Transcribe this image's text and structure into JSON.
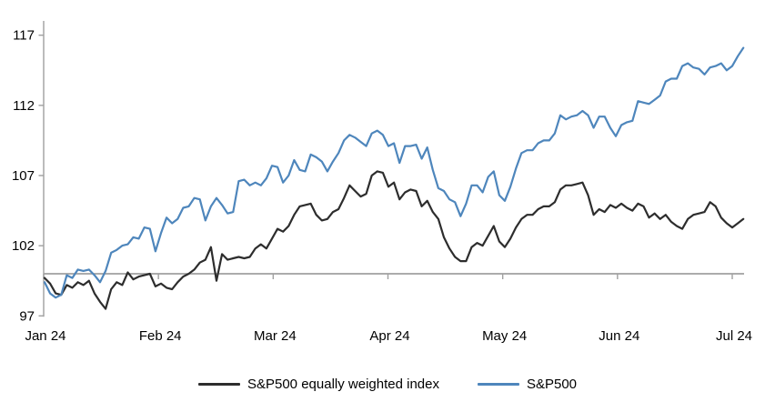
{
  "chart_data": {
    "type": "line",
    "title": "",
    "xlabel": "",
    "ylabel": "",
    "grid": false,
    "legend_position": "bottom-center",
    "x_axis": {
      "tick_labels": [
        "Jan 24",
        "Feb 24",
        "Mar 24",
        "Apr 24",
        "May 24",
        "Jun 24",
        "Jul 24"
      ],
      "month_start_indices": [
        0,
        21,
        41,
        61,
        83,
        105,
        124
      ]
    },
    "y_axis": {
      "tick_labels": [
        "97",
        "102",
        "107",
        "112",
        "117"
      ],
      "tick_values": [
        97,
        102,
        107,
        112,
        117
      ],
      "ylim": [
        97,
        118
      ],
      "baseline_value": 100
    },
    "dates": [
      "Jan 2",
      "Jan 3",
      "Jan 4",
      "Jan 5",
      "Jan 8",
      "Jan 9",
      "Jan 10",
      "Jan 11",
      "Jan 12",
      "Jan 16",
      "Jan 17",
      "Jan 18",
      "Jan 19",
      "Jan 22",
      "Jan 23",
      "Jan 24",
      "Jan 25",
      "Jan 26",
      "Jan 29",
      "Jan 30",
      "Jan 31",
      "Feb 1",
      "Feb 2",
      "Feb 5",
      "Feb 6",
      "Feb 7",
      "Feb 8",
      "Feb 9",
      "Feb 12",
      "Feb 13",
      "Feb 14",
      "Feb 15",
      "Feb 16",
      "Feb 20",
      "Feb 21",
      "Feb 22",
      "Feb 23",
      "Feb 26",
      "Feb 27",
      "Feb 28",
      "Feb 29",
      "Mar 1",
      "Mar 4",
      "Mar 5",
      "Mar 6",
      "Mar 7",
      "Mar 8",
      "Mar 11",
      "Mar 12",
      "Mar 13",
      "Mar 14",
      "Mar 15",
      "Mar 18",
      "Mar 19",
      "Mar 20",
      "Mar 21",
      "Mar 22",
      "Mar 25",
      "Mar 26",
      "Mar 27",
      "Mar 28",
      "Apr 1",
      "Apr 2",
      "Apr 3",
      "Apr 4",
      "Apr 5",
      "Apr 8",
      "Apr 9",
      "Apr 10",
      "Apr 11",
      "Apr 12",
      "Apr 15",
      "Apr 16",
      "Apr 17",
      "Apr 18",
      "Apr 19",
      "Apr 22",
      "Apr 23",
      "Apr 24",
      "Apr 25",
      "Apr 26",
      "Apr 29",
      "Apr 30",
      "May 1",
      "May 2",
      "May 3",
      "May 6",
      "May 7",
      "May 8",
      "May 9",
      "May 10",
      "May 13",
      "May 14",
      "May 15",
      "May 16",
      "May 17",
      "May 20",
      "May 21",
      "May 22",
      "May 23",
      "May 24",
      "May 28",
      "May 29",
      "May 30",
      "May 31",
      "Jun 3",
      "Jun 4",
      "Jun 5",
      "Jun 6",
      "Jun 7",
      "Jun 10",
      "Jun 11",
      "Jun 12",
      "Jun 13",
      "Jun 14",
      "Jun 17",
      "Jun 18",
      "Jun 20",
      "Jun 21",
      "Jun 24",
      "Jun 25",
      "Jun 26",
      "Jun 27",
      "Jun 28",
      "Jul 1",
      "Jul 2",
      "Jul 3"
    ],
    "series": [
      {
        "name": "S&P500 equally weighted index",
        "color": "#2d2d2d",
        "values": [
          99.7,
          99.3,
          98.6,
          98.5,
          99.2,
          99.0,
          99.4,
          99.2,
          99.5,
          98.6,
          98.0,
          97.5,
          98.9,
          99.4,
          99.2,
          100.1,
          99.6,
          99.8,
          99.9,
          100.0,
          99.1,
          99.3,
          99.0,
          98.9,
          99.4,
          99.8,
          100.0,
          100.3,
          100.8,
          101.0,
          101.9,
          99.5,
          101.4,
          101.0,
          101.1,
          101.2,
          101.1,
          101.2,
          101.8,
          102.1,
          101.8,
          102.5,
          103.2,
          103.0,
          103.4,
          104.2,
          104.8,
          104.9,
          105.0,
          104.2,
          103.8,
          103.9,
          104.4,
          104.6,
          105.4,
          106.3,
          105.9,
          105.5,
          105.7,
          107.0,
          107.3,
          107.2,
          106.2,
          106.5,
          105.3,
          105.8,
          106.0,
          105.9,
          104.8,
          105.2,
          104.4,
          103.9,
          102.6,
          101.8,
          101.2,
          100.9,
          100.9,
          101.9,
          102.2,
          102.0,
          102.7,
          103.4,
          102.3,
          101.9,
          102.5,
          103.3,
          103.9,
          104.2,
          104.2,
          104.6,
          104.8,
          104.8,
          105.1,
          106.0,
          106.3,
          106.3,
          106.4,
          106.5,
          105.6,
          104.2,
          104.6,
          104.4,
          104.9,
          104.7,
          105.0,
          104.7,
          104.5,
          105.0,
          104.8,
          104.0,
          104.3,
          103.9,
          104.2,
          103.7,
          103.4,
          103.2,
          103.9,
          104.2,
          104.3,
          104.4,
          105.1,
          104.8,
          104.0,
          103.6,
          103.3,
          103.6,
          103.9
        ]
      },
      {
        "name": "S&P500",
        "color": "#4e86bc",
        "values": [
          99.4,
          98.6,
          98.3,
          98.5,
          99.9,
          99.7,
          100.3,
          100.2,
          100.3,
          99.9,
          99.4,
          100.2,
          101.5,
          101.7,
          102.0,
          102.1,
          102.6,
          102.5,
          103.3,
          103.2,
          101.6,
          102.9,
          104.0,
          103.6,
          103.9,
          104.7,
          104.8,
          105.4,
          105.3,
          103.8,
          104.8,
          105.4,
          104.9,
          104.3,
          104.4,
          106.6,
          106.7,
          106.3,
          106.5,
          106.3,
          106.8,
          107.7,
          107.6,
          106.5,
          107.0,
          108.1,
          107.4,
          107.3,
          108.5,
          108.3,
          108.0,
          107.3,
          108.0,
          108.6,
          109.5,
          109.9,
          109.7,
          109.4,
          109.1,
          110.0,
          110.2,
          109.9,
          109.1,
          109.3,
          107.9,
          109.1,
          109.1,
          109.2,
          108.2,
          109.0,
          107.4,
          106.1,
          105.9,
          105.3,
          105.1,
          104.1,
          105.0,
          106.3,
          106.3,
          105.8,
          106.9,
          107.3,
          105.6,
          105.2,
          106.2,
          107.5,
          108.6,
          108.8,
          108.8,
          109.3,
          109.5,
          109.5,
          110.0,
          111.3,
          111.0,
          111.2,
          111.3,
          111.6,
          111.3,
          110.4,
          111.2,
          111.2,
          110.4,
          109.8,
          110.6,
          110.8,
          110.9,
          112.3,
          112.2,
          112.1,
          112.4,
          112.7,
          113.7,
          113.9,
          113.9,
          114.8,
          115.0,
          114.7,
          114.6,
          114.2,
          114.7,
          114.8,
          115.0,
          114.5,
          114.8,
          115.5,
          116.1
        ]
      }
    ]
  },
  "colors": {
    "axis": "#a0a0a0",
    "text": "#000000",
    "background": "#ffffff"
  }
}
